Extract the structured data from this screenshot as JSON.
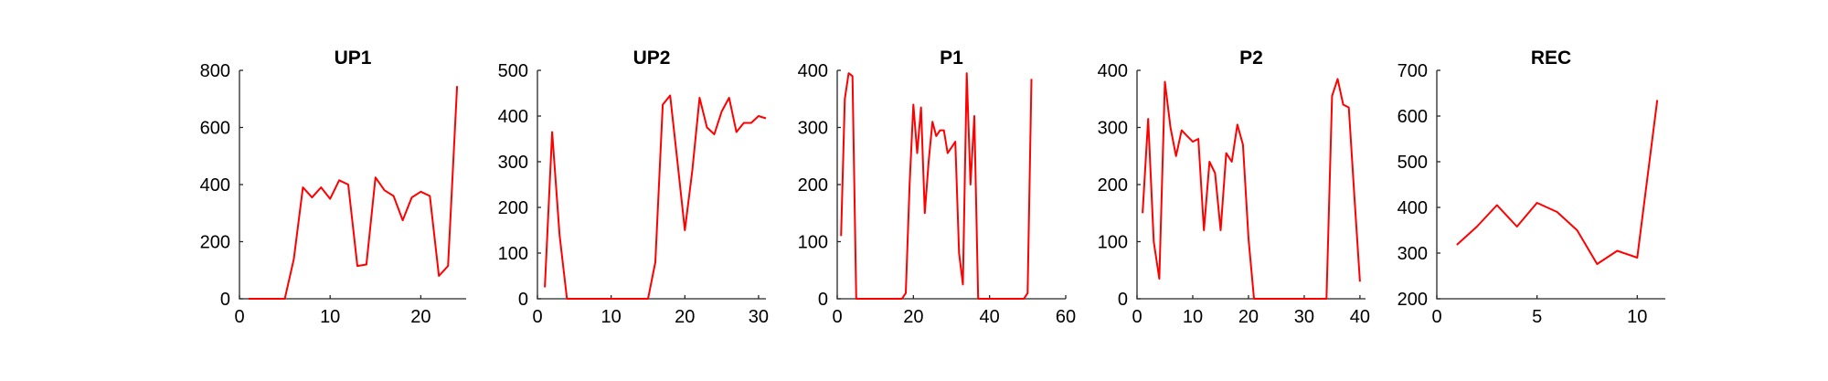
{
  "figure": {
    "background": "#ffffff",
    "line_color": "#ff0000"
  },
  "chart_data": [
    {
      "type": "line",
      "title": "UP1",
      "xlim": [
        0,
        25
      ],
      "ylim": [
        0,
        800
      ],
      "xticks": [
        0,
        10,
        20
      ],
      "yticks": [
        0,
        200,
        400,
        600,
        800
      ],
      "grid": false,
      "series": [
        {
          "x": [
            1,
            2,
            3,
            4,
            5,
            6,
            7,
            8,
            9,
            10,
            11,
            12,
            13,
            14,
            15,
            16,
            17,
            18,
            19,
            20,
            21,
            22,
            23,
            24
          ],
          "y": [
            0,
            0,
            0,
            0,
            0,
            140,
            390,
            355,
            390,
            350,
            415,
            400,
            115,
            120,
            425,
            380,
            360,
            275,
            355,
            375,
            360,
            80,
            115,
            745
          ]
        }
      ]
    },
    {
      "type": "line",
      "title": "UP2",
      "xlim": [
        0,
        31
      ],
      "ylim": [
        0,
        500
      ],
      "xticks": [
        0,
        10,
        20,
        30
      ],
      "yticks": [
        0,
        100,
        200,
        300,
        400,
        500
      ],
      "grid": false,
      "series": [
        {
          "x": [
            1,
            2,
            3,
            4,
            5,
            6,
            7,
            8,
            9,
            10,
            11,
            12,
            13,
            14,
            15,
            16,
            17,
            18,
            19,
            20,
            21,
            22,
            23,
            24,
            25,
            26,
            27,
            28,
            29,
            30,
            31
          ],
          "y": [
            25,
            365,
            140,
            0,
            0,
            0,
            0,
            0,
            0,
            0,
            0,
            0,
            0,
            0,
            0,
            80,
            425,
            445,
            300,
            150,
            280,
            440,
            375,
            360,
            410,
            440,
            365,
            385,
            385,
            400,
            395
          ]
        }
      ]
    },
    {
      "type": "line",
      "title": "P1",
      "xlim": [
        0,
        60
      ],
      "ylim": [
        0,
        400
      ],
      "xticks": [
        0,
        20,
        40,
        60
      ],
      "yticks": [
        0,
        100,
        200,
        300,
        400
      ],
      "grid": false,
      "series": [
        {
          "x": [
            1,
            2,
            3,
            4,
            5,
            6,
            10,
            15,
            17,
            18,
            19,
            20,
            21,
            22,
            23,
            24,
            25,
            26,
            27,
            28,
            29,
            30,
            31,
            32,
            33,
            34,
            35,
            36,
            37,
            38,
            40,
            45,
            49,
            50,
            51
          ],
          "y": [
            110,
            350,
            395,
            390,
            0,
            0,
            0,
            0,
            0,
            10,
            200,
            340,
            255,
            335,
            150,
            240,
            310,
            285,
            295,
            295,
            255,
            265,
            275,
            80,
            25,
            395,
            200,
            320,
            0,
            0,
            0,
            0,
            0,
            10,
            385
          ]
        }
      ]
    },
    {
      "type": "line",
      "title": "P2",
      "xlim": [
        0,
        41
      ],
      "ylim": [
        0,
        400
      ],
      "xticks": [
        0,
        10,
        20,
        30,
        40
      ],
      "yticks": [
        0,
        100,
        200,
        300,
        400
      ],
      "grid": false,
      "series": [
        {
          "x": [
            1,
            2,
            3,
            4,
            5,
            6,
            7,
            8,
            9,
            10,
            11,
            12,
            13,
            14,
            15,
            16,
            17,
            18,
            19,
            20,
            21,
            22,
            25,
            30,
            34,
            35,
            36,
            37,
            38,
            39,
            40
          ],
          "y": [
            150,
            315,
            100,
            35,
            380,
            300,
            250,
            295,
            285,
            275,
            280,
            120,
            240,
            220,
            120,
            255,
            240,
            305,
            270,
            105,
            0,
            0,
            0,
            0,
            0,
            355,
            385,
            340,
            335,
            180,
            30
          ]
        }
      ]
    },
    {
      "type": "line",
      "title": "REC",
      "xlim": [
        0,
        11.4
      ],
      "ylim": [
        200,
        700
      ],
      "xticks": [
        0,
        5,
        10
      ],
      "yticks": [
        200,
        300,
        400,
        500,
        600,
        700
      ],
      "grid": false,
      "series": [
        {
          "x": [
            1,
            2,
            3,
            4,
            5,
            6,
            7,
            8,
            9,
            10,
            11
          ],
          "y": [
            318,
            358,
            405,
            358,
            410,
            390,
            350,
            276,
            305,
            290,
            635
          ]
        }
      ]
    }
  ]
}
